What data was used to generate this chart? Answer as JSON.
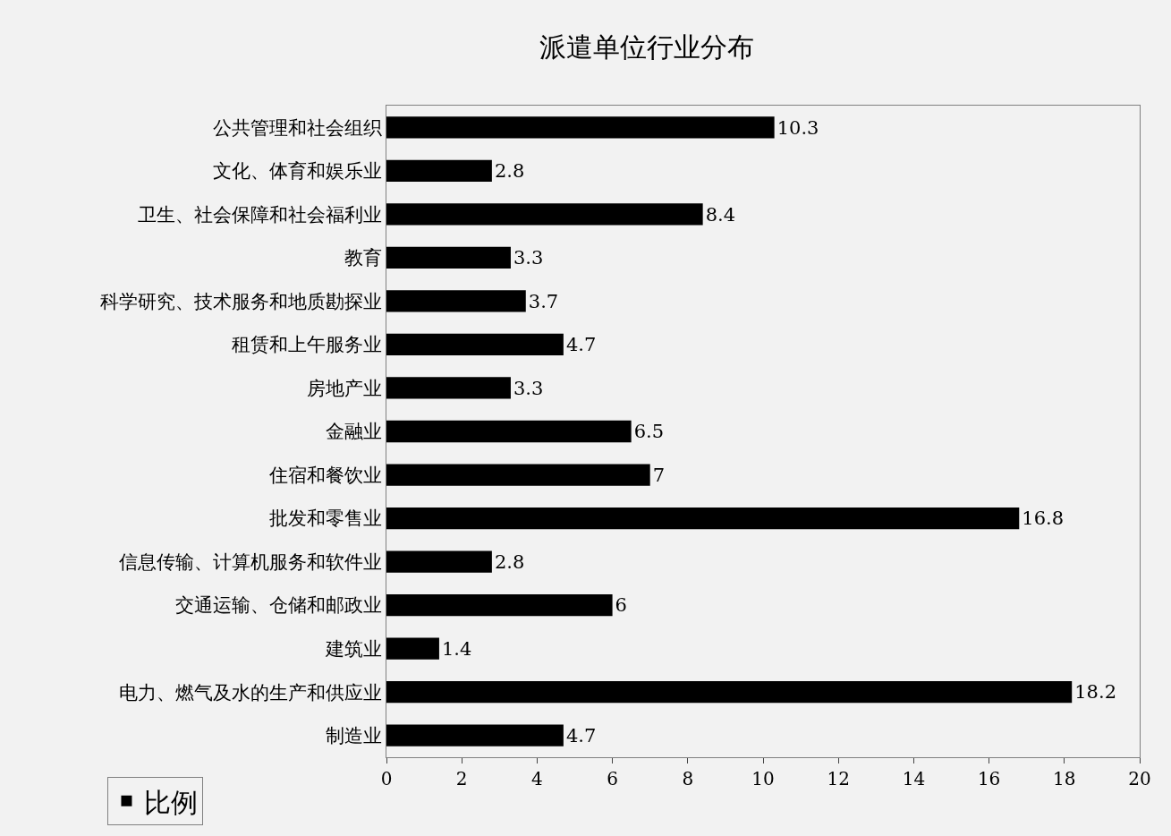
{
  "chart_data": {
    "type": "bar",
    "orientation": "horizontal",
    "title": "派遣单位行业分布",
    "categories": [
      "公共管理和社会组织",
      "文化、体育和娱乐业",
      "卫生、社会保障和社会福利业",
      "教育",
      "科学研究、技术服务和地质勘探业",
      "租赁和上午服务业",
      "房地产业",
      "金融业",
      "住宿和餐饮业",
      "批发和零售业",
      "信息传输、计算机服务和软件业",
      "交通运输、仓储和邮政业",
      "建筑业",
      "电力、燃气及水的生产和供应业",
      "制造业"
    ],
    "series": [
      {
        "name": "比例",
        "color": "#000000",
        "values": [
          10.3,
          2.8,
          8.4,
          3.3,
          3.7,
          4.7,
          3.3,
          6.5,
          7,
          16.8,
          2.8,
          6,
          1.4,
          18.2,
          4.7
        ]
      }
    ],
    "xlim": [
      0,
      20
    ],
    "xticks": [
      0,
      2,
      4,
      6,
      8,
      10,
      12,
      14,
      16,
      18,
      20
    ],
    "grid": false,
    "legend": "bottom left",
    "data_labels": true
  }
}
